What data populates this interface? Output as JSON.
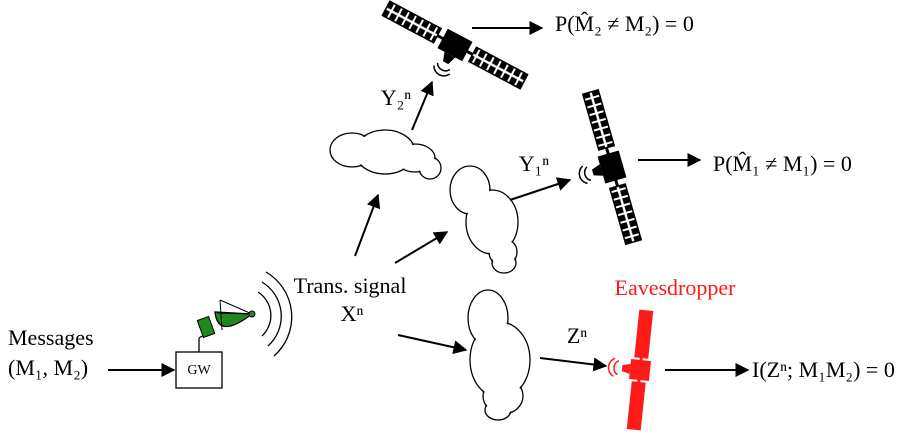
{
  "labels": {
    "messages": "Messages",
    "message_pair": "(M₁, M₂)",
    "gateway": "GW",
    "trans_signal": "Trans. signal",
    "trans_symbol": "Xⁿ",
    "y2": "Y₂ⁿ",
    "y1": "Y₁ⁿ",
    "z": "Zⁿ",
    "eavesdropper": "Eavesdropper",
    "condition_2": "P(M̂₂ ≠ M₂) = 0",
    "condition_1": "P(M̂₁ ≠ M₁) = 0",
    "secrecy": "I(Zⁿ; M₁M₂) = 0"
  }
}
